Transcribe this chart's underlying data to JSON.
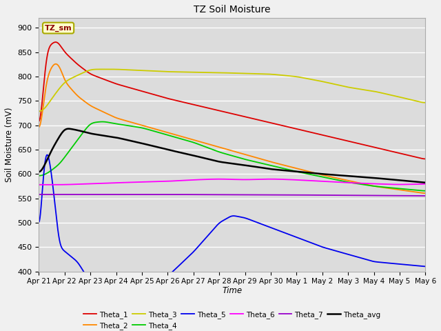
{
  "title": "TZ Soil Moisture",
  "ylabel": "Soil Moisture (mV)",
  "xlabel": "Time",
  "ylim": [
    400,
    920
  ],
  "yticks": [
    400,
    450,
    500,
    550,
    600,
    650,
    700,
    750,
    800,
    850,
    900
  ],
  "xtick_labels": [
    "Apr 21",
    "Apr 22",
    "Apr 23",
    "Apr 24",
    "Apr 25",
    "Apr 26",
    "Apr 27",
    "Apr 28",
    "Apr 29",
    "Apr 30",
    "May 1",
    "May 2",
    "May 3",
    "May 4",
    "May 5",
    "May 6"
  ],
  "bg_color": "#dcdcdc",
  "fig_color": "#f0f0f0",
  "grid_color": "#ffffff",
  "legend_label": "TZ_sm",
  "series_colors": {
    "Theta_1": "#dd0000",
    "Theta_2": "#ff8800",
    "Theta_3": "#cccc00",
    "Theta_4": "#00cc00",
    "Theta_5": "#0000ee",
    "Theta_6": "#ff00ff",
    "Theta_7": "#9900cc",
    "Theta_avg": "#000000"
  }
}
